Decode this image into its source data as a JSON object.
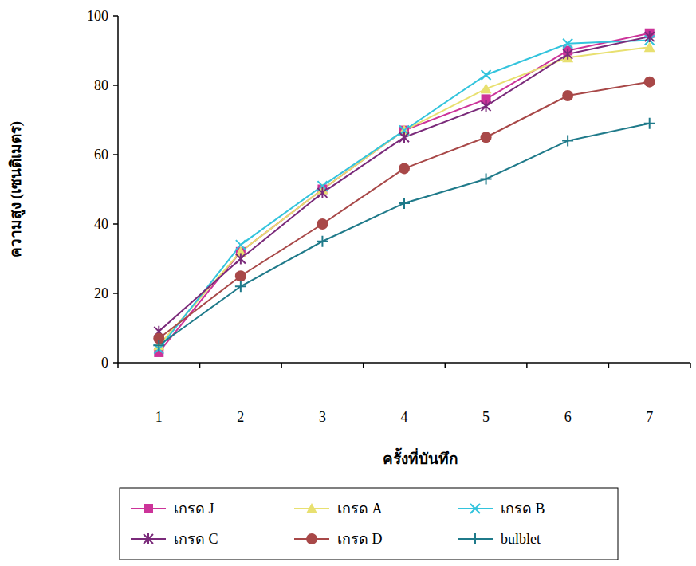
{
  "chart_data": {
    "type": "line",
    "x_label": "ครั้งที่บันทึก",
    "y_label": "ความสูง (เซนติเมตร)",
    "categories": [
      "1",
      "2",
      "3",
      "4",
      "5",
      "6",
      "7"
    ],
    "ylim": [
      0,
      100
    ],
    "yticks": [
      0,
      20,
      40,
      60,
      80,
      100
    ],
    "grid": false,
    "legend": "bottom",
    "series": [
      {
        "name": "เกรด J",
        "color": "#cc3399",
        "marker": "square",
        "values": [
          3,
          32,
          50,
          67,
          76,
          90,
          95
        ]
      },
      {
        "name": "เกรด A",
        "color": "#e8e070",
        "marker": "triangle",
        "values": [
          5,
          32,
          50,
          67,
          79,
          88,
          91
        ]
      },
      {
        "name": "เกรด B",
        "color": "#33c4dd",
        "marker": "x",
        "values": [
          4,
          34,
          51,
          67,
          83,
          92,
          93
        ]
      },
      {
        "name": "เกรด C",
        "color": "#7a2a7a",
        "marker": "star",
        "values": [
          9,
          30,
          49,
          65,
          74,
          89,
          94
        ]
      },
      {
        "name": "เกรด D",
        "color": "#a84848",
        "marker": "circle",
        "values": [
          7,
          25,
          40,
          56,
          65,
          77,
          81
        ]
      },
      {
        "name": "bulblet",
        "color": "#1f7a8a",
        "marker": "plus",
        "values": [
          5,
          22,
          35,
          46,
          53,
          64,
          69
        ]
      }
    ]
  }
}
